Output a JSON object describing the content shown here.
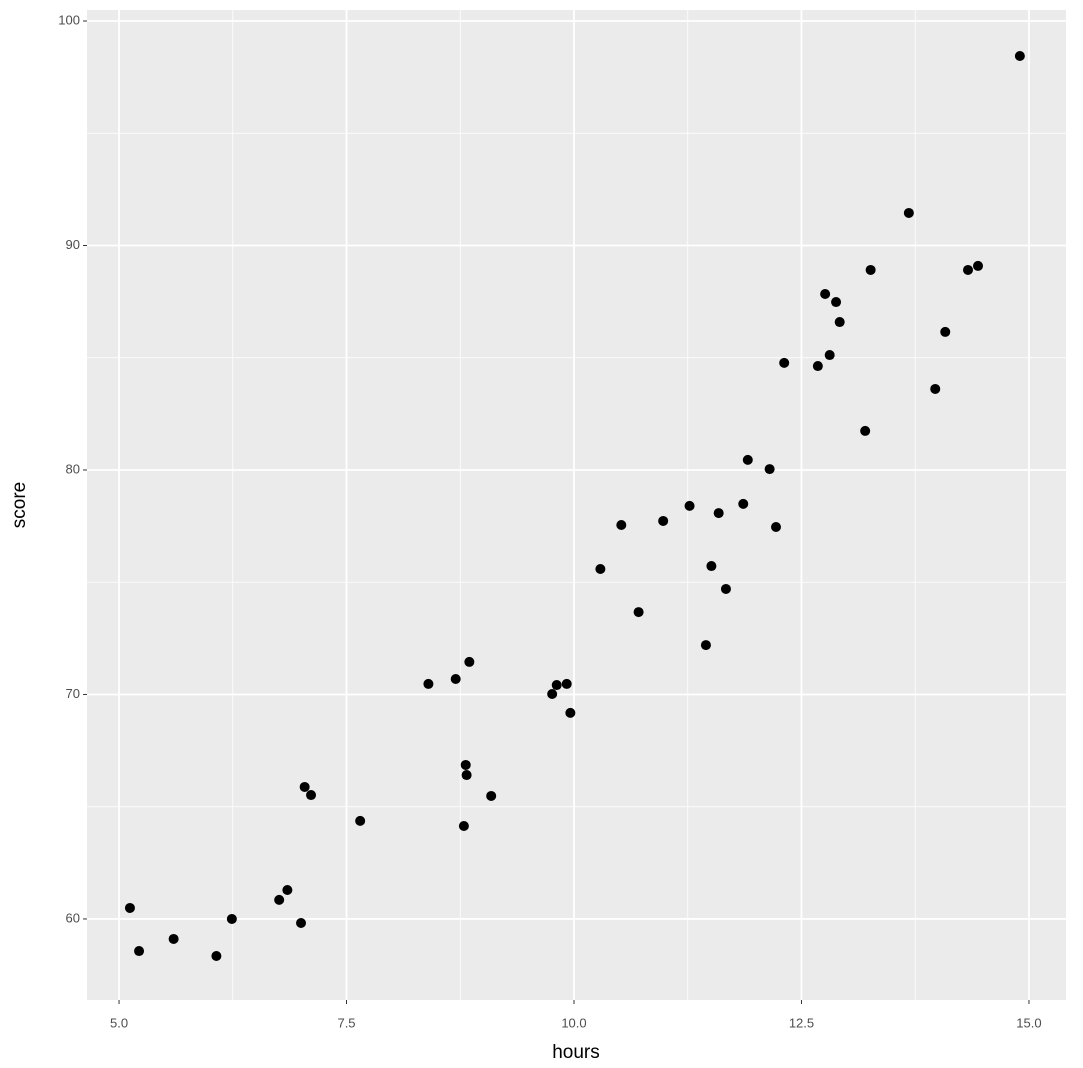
{
  "chart_data": {
    "type": "scatter",
    "x_label": "hours",
    "y_label": "score",
    "x": [
      5.12,
      5.22,
      5.6,
      6.07,
      6.24,
      6.76,
      6.85,
      7.0,
      7.04,
      7.11,
      7.65,
      8.4,
      8.7,
      8.85,
      8.81,
      8.82,
      8.79,
      9.09,
      9.76,
      9.81,
      9.92,
      9.96,
      10.29,
      10.52,
      10.71,
      10.98,
      11.27,
      11.45,
      11.51,
      11.59,
      11.67,
      11.86,
      11.91,
      12.15,
      12.22,
      12.31,
      12.68,
      12.76,
      12.81,
      12.88,
      12.92,
      13.2,
      13.26,
      13.68,
      13.97,
      14.08,
      14.33,
      14.44,
      14.9
    ],
    "values": [
      60.49,
      58.57,
      59.11,
      58.35,
      60.0,
      60.85,
      61.29,
      59.82,
      65.88,
      65.52,
      64.37,
      70.47,
      70.69,
      71.45,
      66.86,
      66.41,
      64.14,
      65.48,
      70.02,
      70.42,
      70.47,
      69.18,
      75.59,
      77.55,
      73.67,
      77.73,
      78.4,
      72.2,
      75.72,
      78.08,
      74.7,
      78.49,
      80.45,
      80.04,
      77.46,
      84.77,
      84.63,
      87.84,
      85.12,
      87.48,
      86.59,
      81.74,
      88.91,
      91.45,
      83.61,
      86.15,
      88.91,
      89.09,
      98.44
    ],
    "color": "#000000",
    "xlim": [
      4.648,
      15.407
    ],
    "ylim": [
      56.39,
      100.49
    ],
    "xticks": [
      {
        "value": 5,
        "label": "5.0"
      },
      {
        "value": 7.5,
        "label": "7.5"
      },
      {
        "value": 10,
        "label": "10.0"
      },
      {
        "value": 12.5,
        "label": "12.5"
      },
      {
        "value": 15,
        "label": "15.0"
      }
    ],
    "yticks": [
      60,
      70,
      80,
      90,
      100
    ],
    "minor_xticks": [
      6.25,
      8.75,
      11.25,
      13.75
    ],
    "minor_yticks": [
      65,
      75,
      85,
      95
    ],
    "grid": true
  }
}
